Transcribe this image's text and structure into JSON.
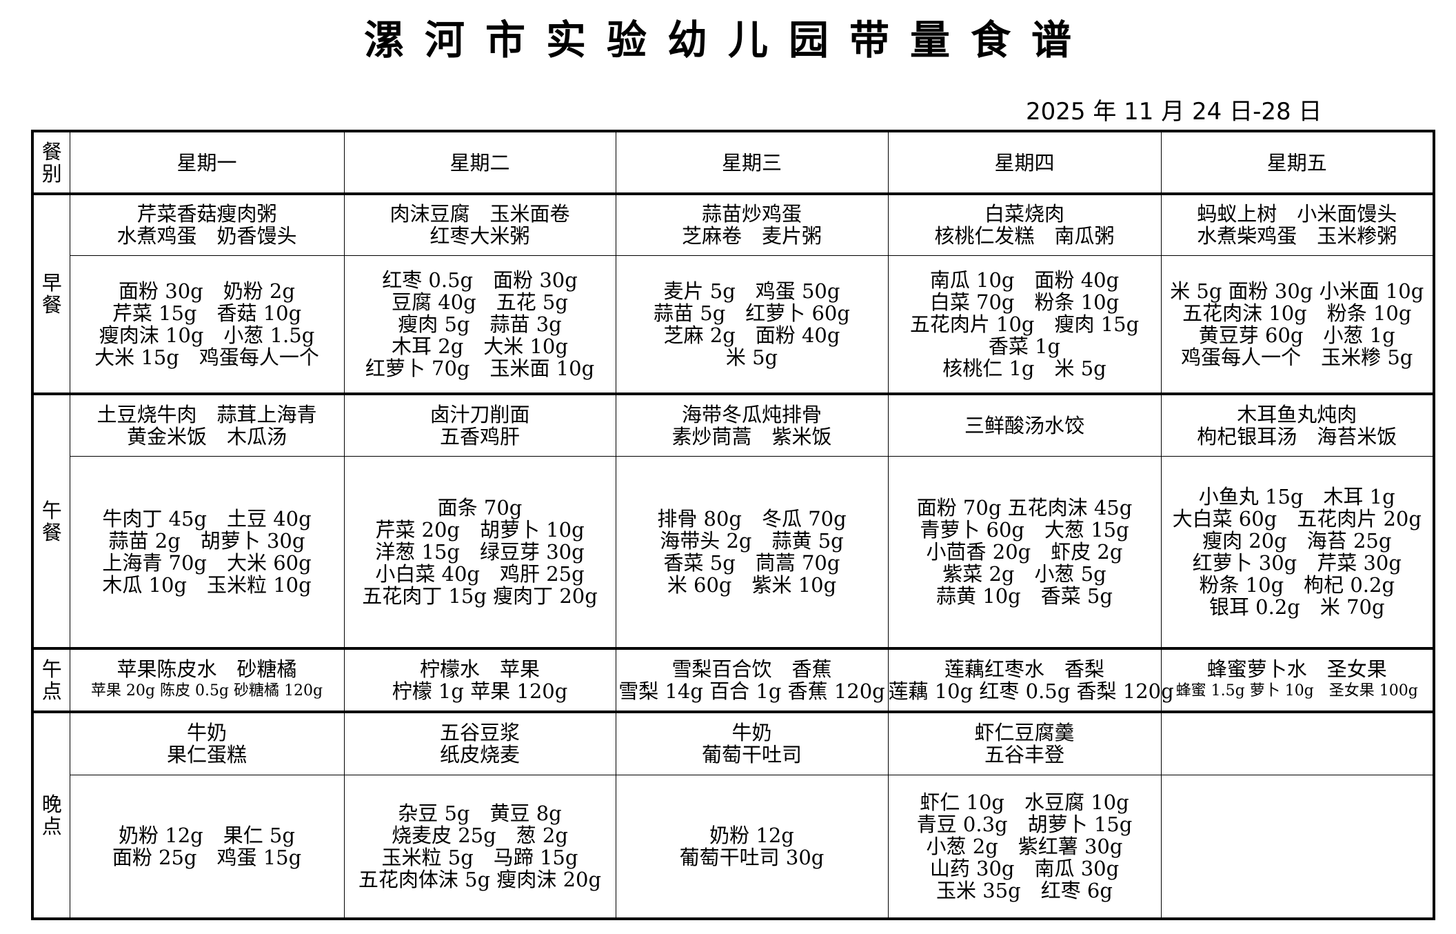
{
  "title": "漯河市实验幼儿园带量食谱",
  "date": "2025 年 11 月 24 日-28 日",
  "header": {
    "meal_col": "餐别",
    "days": [
      "星期一",
      "星期二",
      "星期三",
      "星期四",
      "星期五"
    ]
  },
  "meals": {
    "breakfast": {
      "label": "早餐",
      "dishes": [
        [
          "芹菜香菇瘦肉粥",
          "水煮鸡蛋　奶香馒头"
        ],
        [
          "肉沫豆腐　玉米面卷",
          "红枣大米粥"
        ],
        [
          "蒜苗炒鸡蛋",
          "芝麻卷　麦片粥"
        ],
        [
          "白菜烧肉",
          "核桃仁发糕　南瓜粥"
        ],
        [
          "蚂蚁上树　小米面馒头",
          "水煮柴鸡蛋　玉米糁粥"
        ]
      ],
      "ingredients": [
        [
          "面粉 30g　奶粉 2g",
          "芹菜 15g　香菇 10g",
          "瘦肉沫 10g　小葱 1.5g",
          "大米 15g　鸡蛋每人一个"
        ],
        [
          "红枣 0.5g　面粉 30g",
          "豆腐 40g　五花 5g",
          "瘦肉 5g　蒜苗 3g",
          "木耳 2g　大米 10g",
          "红萝卜 70g　玉米面 10g"
        ],
        [
          "麦片 5g　鸡蛋 50g",
          "蒜苗 5g　红萝卜 60g",
          "芝麻 2g　面粉 40g",
          "米 5g"
        ],
        [
          "南瓜 10g　面粉 40g",
          "白菜 70g　粉条 10g",
          "五花肉片 10g　瘦肉 15g",
          "香菜 1g",
          "核桃仁 1g　米 5g"
        ],
        [
          "米 5g 面粉 30g 小米面 10g",
          "五花肉沫 10g　粉条 10g",
          "黄豆芽 60g　小葱 1g",
          "鸡蛋每人一个　玉米糁 5g"
        ]
      ]
    },
    "lunch": {
      "label": "午餐",
      "dishes": [
        [
          "土豆烧牛肉　蒜茸上海青",
          "黄金米饭　木瓜汤"
        ],
        [
          "卤汁刀削面",
          "五香鸡肝"
        ],
        [
          "海带冬瓜炖排骨",
          "素炒茼蒿　紫米饭"
        ],
        [
          "三鲜酸汤水饺"
        ],
        [
          "木耳鱼丸炖肉",
          "枸杞银耳汤　海苔米饭"
        ]
      ],
      "ingredients": [
        [
          "牛肉丁 45g　土豆 40g",
          "蒜苗 2g　胡萝卜 30g",
          "上海青 70g　大米 60g",
          "木瓜 10g　玉米粒 10g"
        ],
        [
          "面条 70g",
          "芹菜 20g　胡萝卜 10g",
          "洋葱 15g　绿豆芽 30g",
          "小白菜 40g　鸡肝 25g",
          "五花肉丁 15g 瘦肉丁 20g"
        ],
        [
          "排骨 80g　冬瓜 70g",
          "海带头 2g　蒜黄 5g",
          "香菜 5g　茼蒿 70g",
          "米 60g　紫米 10g"
        ],
        [
          "面粉 70g 五花肉沫 45g",
          "青萝卜 60g　大葱 15g",
          "小茴香 20g　虾皮 2g",
          "紫菜 2g　小葱 5g",
          "蒜黄 10g　香菜 5g"
        ],
        [
          "小鱼丸 15g　木耳 1g",
          "大白菜 60g　五花肉片 20g",
          "瘦肉 20g　海苔 25g",
          "红萝卜 30g　芹菜 30g",
          "粉条 10g　枸杞 0.2g",
          "银耳 0.2g　米 70g"
        ]
      ]
    },
    "snack": {
      "label": "午点",
      "dishes": [
        "苹果陈皮水　砂糖橘",
        "柠檬水　苹果",
        "雪梨百合饮　香蕉",
        "莲藕红枣水　香梨",
        "蜂蜜萝卜水　圣女果"
      ],
      "ingredients": [
        "苹果 20g 陈皮 0.5g 砂糖橘 120g",
        "柠檬 1g 苹果 120g",
        "雪梨 14g 百合 1g 香蕉 120g",
        "莲藕 10g 红枣 0.5g 香梨 120g",
        "蜂蜜 1.5g 萝卜 10g　圣女果 100g"
      ]
    },
    "dinner": {
      "label": "晚点",
      "dishes": [
        [
          "牛奶",
          "果仁蛋糕"
        ],
        [
          "五谷豆浆",
          "纸皮烧麦"
        ],
        [
          "牛奶",
          "葡萄干吐司"
        ],
        [
          "虾仁豆腐羹",
          "五谷丰登"
        ],
        []
      ],
      "ingredients": [
        [
          "奶粉 12g　果仁 5g",
          "面粉 25g　鸡蛋 15g"
        ],
        [
          "杂豆 5g　黄豆 8g",
          "烧麦皮 25g　葱 2g",
          "玉米粒 5g　马蹄 15g",
          "五花肉体沫 5g 瘦肉沫 20g"
        ],
        [
          "奶粉 12g",
          "葡萄干吐司 30g"
        ],
        [
          "虾仁 10g　水豆腐 10g",
          "青豆 0.3g　胡萝卜 15g",
          "小葱 2g　紫红薯 30g",
          "山药 30g　南瓜 30g",
          "玉米 35g　红枣 6g"
        ],
        []
      ]
    }
  }
}
